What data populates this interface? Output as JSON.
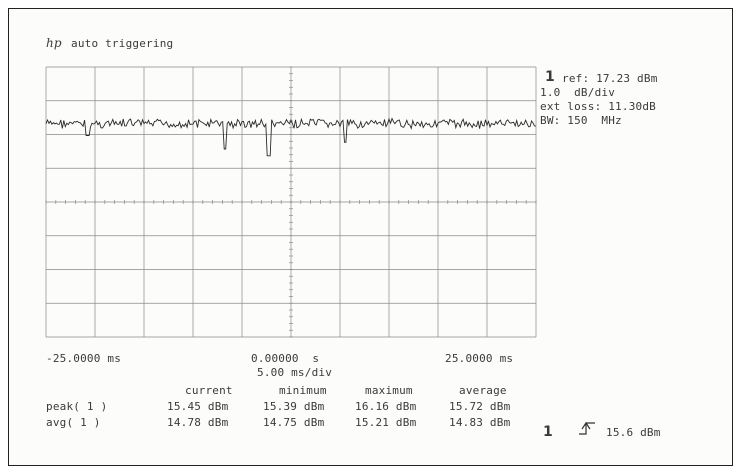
{
  "header": {
    "logo": "hp",
    "mode": "auto triggering"
  },
  "settings": {
    "channel": "1",
    "ref": "ref: 17.23 dBm",
    "scale": "1.0  dB/div",
    "ext_loss": "ext loss: 11.30dB",
    "bw": "BW: 150  MHz"
  },
  "x_axis": {
    "left": "-25.0000 ms",
    "center": "0.00000  s",
    "right": "25.0000 ms",
    "timebase": "5.00 ms/div"
  },
  "measurements": {
    "headers": [
      "current",
      "minimum",
      "maximum",
      "average"
    ],
    "rows": [
      {
        "label": "peak( 1 )",
        "values": [
          "15.45 dBm",
          "15.39 dBm",
          "16.16 dBm",
          "15.72 dBm"
        ]
      },
      {
        "label": "avg( 1 )",
        "values": [
          "14.78 dBm",
          "14.75 dBm",
          "15.21 dBm",
          "14.83 dBm"
        ]
      }
    ]
  },
  "trigger": {
    "channel": "1",
    "level": "15.6 dBm"
  },
  "display": {
    "grid_columns": 10,
    "grid_rows": 8,
    "grid_on": true,
    "trace_color": "#2a2a2a",
    "grid_color": "#8a8a8a",
    "trace": {
      "center_div": 1.68,
      "spread_div": 0.12,
      "dips": [
        {
          "x_div": 0.85,
          "depth_div": 0.35
        },
        {
          "x_div": 3.65,
          "depth_div": 0.75
        },
        {
          "x_div": 4.55,
          "depth_div": 0.95
        },
        {
          "x_div": 6.1,
          "depth_div": 0.55
        }
      ]
    }
  }
}
